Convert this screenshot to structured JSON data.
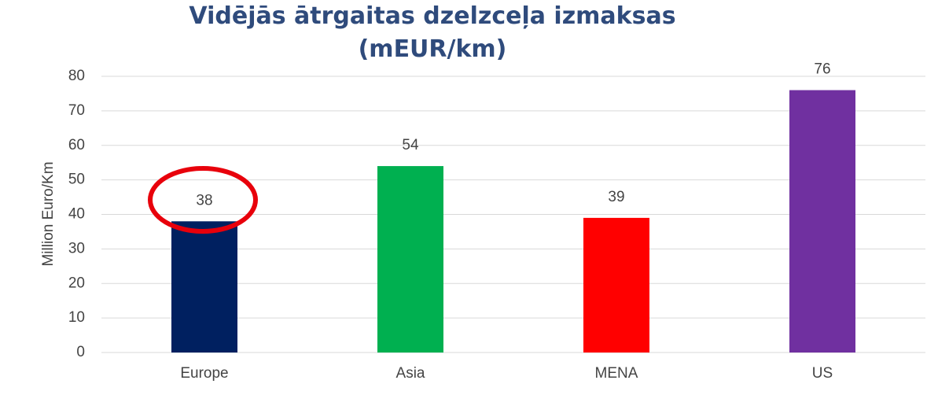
{
  "chart_data": {
    "type": "bar",
    "title": "Vidējās ātrgaitas dzelzceļa izmaksas (mEUR/km)",
    "y_label": "Million Euro/Km",
    "categories": [
      "Europe",
      "Asia",
      "MENA",
      "US"
    ],
    "values": [
      38,
      54,
      39,
      76
    ],
    "colors": [
      "#002060",
      "#00b050",
      "#ff0000",
      "#7030a0"
    ],
    "ylim": [
      0,
      80
    ],
    "yticks": [
      0,
      10,
      20,
      30,
      40,
      50,
      60,
      70,
      80
    ],
    "grid": true
  }
}
